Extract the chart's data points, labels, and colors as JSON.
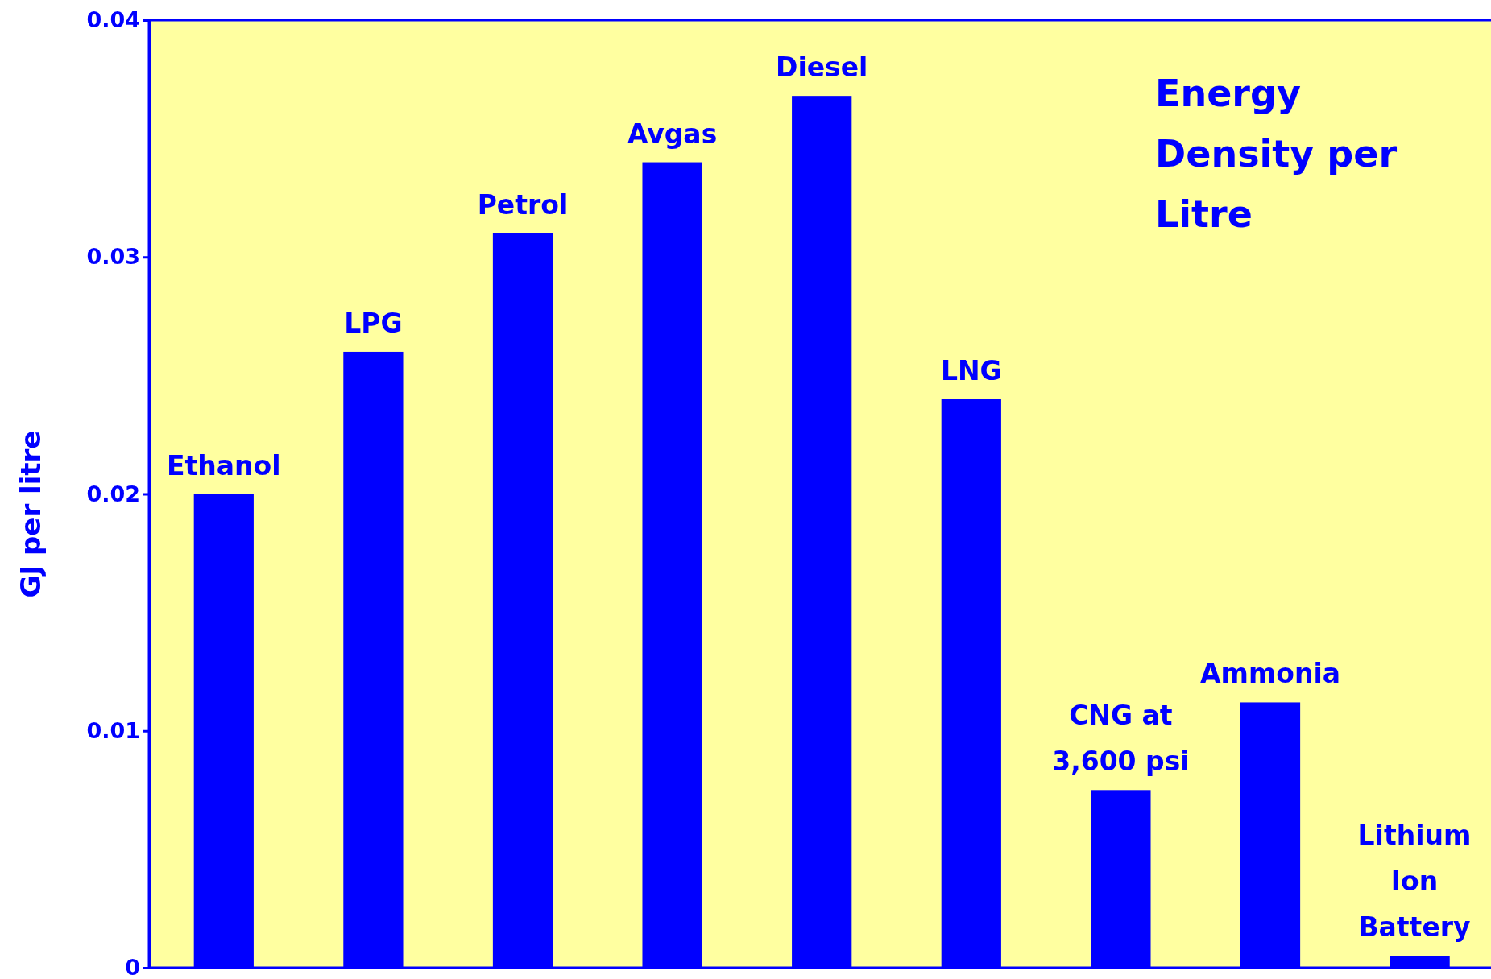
{
  "chart_data": {
    "type": "bar",
    "title": "Energy Density per Litre",
    "ylabel": "GJ per litre",
    "categories": [
      "Ethanol",
      "LPG",
      "Petrol",
      "Avgas",
      "Diesel",
      "LNG",
      "CNG at 3,600 psi",
      "Ammonia",
      "Lithium Ion Battery"
    ],
    "values": [
      0.02,
      0.026,
      0.031,
      0.034,
      0.0368,
      0.024,
      0.0075,
      0.0112,
      0.0005
    ],
    "color": "#0000ff",
    "ylim": [
      0,
      0.04
    ],
    "yticks": [
      0,
      0.01,
      0.02,
      0.03,
      0.04
    ],
    "grid": false,
    "tick_labels": "y"
  }
}
